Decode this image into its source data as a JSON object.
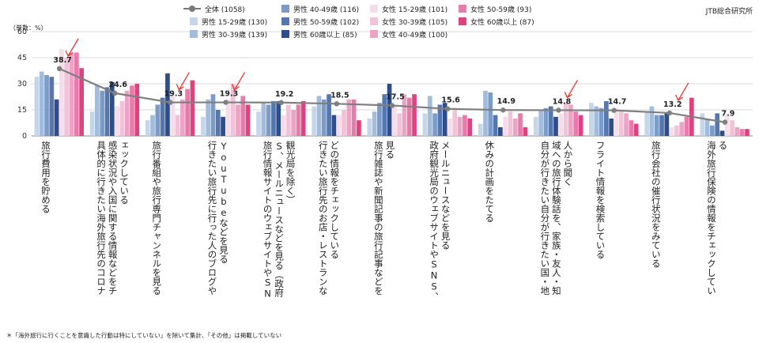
{
  "source": "JTB総合研究所",
  "footnote": "＊「海外旅行に行くことを意識した行動は特にしていない」を除いて集計、「その他」は掲載していない",
  "chart_data": {
    "type": "bar",
    "unit_label": "（単数：%）",
    "ylim": [
      0,
      60
    ],
    "yticks": [
      0,
      15,
      30,
      45,
      60
    ],
    "categories": [
      "旅行費用を貯める",
      "具体的に行きたい海外旅行先のコロナ感染状況や入国に関する情報などをチェックしている",
      "旅行番組や旅行専門チャンネルを見る",
      "行きたい旅行先に行った人のブログやYouTubeなどを見る",
      "旅行情報サイトのウェブサイトやSNS、メールニュースなどを見る（政府観光局を除く）",
      "行きたい旅行先のお店・レストランなどの情報をチェックしている",
      "旅行雑誌や新聞記事の旅行記事などを見る",
      "政府観光局のウェブサイトやSNS、メールニュースなどを見る",
      "休みの計画をたてる",
      "自分が行きたい自分が行きたい国・地域への旅行体験話を、家族・友人・知人から聞く",
      "フライト情報を検索している",
      "旅行会社の催行状況をみている",
      "海外旅行保険の情報をチェックしている"
    ],
    "line_series": {
      "name": "全体 (1058)",
      "color": "#7f7f7f",
      "values": [
        38.7,
        24.6,
        19.3,
        19.3,
        19.2,
        18.5,
        17.5,
        15.6,
        14.9,
        14.8,
        14.7,
        13.2,
        7.9
      ]
    },
    "highlighted_categories": [
      0,
      2,
      3,
      9,
      11
    ],
    "series": [
      {
        "name": "男性 15-29歳 (130)",
        "color": "#c6d6ea",
        "values": [
          34,
          14,
          9,
          11,
          14,
          17,
          10,
          13,
          7,
          11,
          19,
          14,
          13
        ]
      },
      {
        "name": "男性 30-39歳 (139)",
        "color": "#a2bcdd",
        "values": [
          37,
          29,
          12,
          21,
          19,
          23,
          14,
          23,
          26,
          15,
          17,
          17,
          10
        ]
      },
      {
        "name": "男性 40-49歳 (116)",
        "color": "#7b9cc8",
        "values": [
          35,
          26,
          18,
          24,
          18,
          21,
          19,
          13,
          25,
          16,
          16,
          12,
          6
        ]
      },
      {
        "name": "男性 50-59歳 (102)",
        "color": "#5577b0",
        "values": [
          34,
          28,
          22,
          15,
          20,
          24,
          24,
          18,
          12,
          17,
          20,
          12,
          13
        ]
      },
      {
        "name": "男性 60歳以上 (85)",
        "color": "#2f4d89",
        "values": [
          21,
          31,
          36,
          11,
          20,
          12,
          30,
          19,
          5,
          11,
          10,
          13,
          3
        ]
      },
      {
        "name": "女性 15-29歳 (101)",
        "color": "#f6dde9",
        "values": [
          50,
          17,
          23,
          21,
          12,
          12,
          17,
          10,
          11,
          13,
          16,
          5,
          12
        ]
      },
      {
        "name": "女性 30-39歳 (105)",
        "color": "#f2c2d8",
        "values": [
          45,
          20,
          12,
          30,
          18,
          15,
          13,
          16,
          14,
          19,
          14,
          6,
          9
        ]
      },
      {
        "name": "女性 40-49歳 (100)",
        "color": "#eca3c5",
        "values": [
          48,
          26,
          21,
          18,
          15,
          21,
          24,
          11,
          10,
          18,
          13,
          8,
          5
        ]
      },
      {
        "name": "女性 50-59歳 (93)",
        "color": "#e87bab",
        "values": [
          48,
          29,
          27,
          23,
          18,
          21,
          22,
          12,
          13,
          14,
          9,
          11,
          4
        ]
      },
      {
        "name": "女性 60歳以上 (87)",
        "color": "#e0427f",
        "values": [
          39,
          30,
          32,
          18,
          20,
          9,
          24,
          10,
          5,
          12,
          7,
          22,
          4
        ]
      }
    ]
  }
}
